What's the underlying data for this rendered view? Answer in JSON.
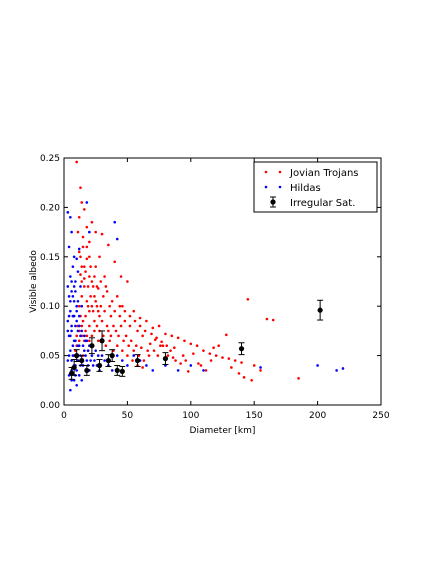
{
  "chart_data": {
    "type": "scatter",
    "title": "",
    "xlabel": "Diameter [km]",
    "ylabel": "Visible albedo",
    "xlim": [
      0,
      250
    ],
    "ylim": [
      0.0,
      0.25
    ],
    "x_ticks": [
      0,
      50,
      100,
      150,
      200,
      250
    ],
    "y_ticks": [
      0.0,
      0.05,
      0.1,
      0.15,
      0.2,
      0.25
    ],
    "x_tick_labels": [
      "0",
      "50",
      "100",
      "150",
      "200",
      "250"
    ],
    "y_tick_labels": [
      "0.00",
      "0.05",
      "0.10",
      "0.15",
      "0.20",
      "0.25"
    ],
    "grid": false,
    "legend_position": "top-right",
    "series": [
      {
        "name": "Jovian Trojans",
        "color": "#ff0000",
        "marker": "dot",
        "points": [
          [
            10,
            0.246
          ],
          [
            13,
            0.22
          ],
          [
            14,
            0.205
          ],
          [
            12,
            0.19
          ],
          [
            16,
            0.198
          ],
          [
            18,
            0.18
          ],
          [
            11,
            0.175
          ],
          [
            22,
            0.185
          ],
          [
            25,
            0.175
          ],
          [
            30,
            0.173
          ],
          [
            20,
            0.165
          ],
          [
            15,
            0.16
          ],
          [
            35,
            0.162
          ],
          [
            28,
            0.15
          ],
          [
            12,
            0.155
          ],
          [
            18,
            0.148
          ],
          [
            25,
            0.14
          ],
          [
            14,
            0.14
          ],
          [
            40,
            0.145
          ],
          [
            45,
            0.13
          ],
          [
            50,
            0.125
          ],
          [
            42,
            0.11
          ],
          [
            33,
            0.12
          ],
          [
            20,
            0.13
          ],
          [
            16,
            0.128
          ],
          [
            13,
            0.132
          ],
          [
            22,
            0.125
          ],
          [
            27,
            0.118
          ],
          [
            31,
            0.11
          ],
          [
            38,
            0.105
          ],
          [
            46,
            0.1
          ],
          [
            55,
            0.095
          ],
          [
            60,
            0.088
          ],
          [
            65,
            0.085
          ],
          [
            70,
            0.078
          ],
          [
            75,
            0.08
          ],
          [
            80,
            0.072
          ],
          [
            85,
            0.07
          ],
          [
            90,
            0.068
          ],
          [
            95,
            0.065
          ],
          [
            100,
            0.062
          ],
          [
            105,
            0.06
          ],
          [
            110,
            0.055
          ],
          [
            115,
            0.052
          ],
          [
            120,
            0.05
          ],
          [
            125,
            0.048
          ],
          [
            130,
            0.047
          ],
          [
            135,
            0.045
          ],
          [
            140,
            0.043
          ],
          [
            145,
            0.107
          ],
          [
            150,
            0.04
          ],
          [
            160,
            0.087
          ],
          [
            165,
            0.086
          ],
          [
            185,
            0.027
          ],
          [
            155,
            0.035
          ],
          [
            122,
            0.06
          ],
          [
            118,
            0.058
          ],
          [
            128,
            0.071
          ],
          [
            108,
            0.04
          ],
          [
            112,
            0.035
          ],
          [
            98,
            0.034
          ],
          [
            92,
            0.042
          ],
          [
            88,
            0.045
          ],
          [
            82,
            0.05
          ],
          [
            78,
            0.06
          ],
          [
            72,
            0.066
          ],
          [
            68,
            0.062
          ],
          [
            62,
            0.07
          ],
          [
            58,
            0.075
          ],
          [
            52,
            0.08
          ],
          [
            48,
            0.085
          ],
          [
            44,
            0.09
          ],
          [
            40,
            0.095
          ],
          [
            36,
            0.1
          ],
          [
            32,
            0.095
          ],
          [
            28,
            0.09
          ],
          [
            24,
            0.085
          ],
          [
            20,
            0.08
          ],
          [
            17,
            0.075
          ],
          [
            14,
            0.07
          ],
          [
            12,
            0.065
          ],
          [
            10,
            0.06
          ],
          [
            9,
            0.055
          ],
          [
            8,
            0.05
          ],
          [
            11,
            0.045
          ],
          [
            15,
            0.05
          ],
          [
            19,
            0.055
          ],
          [
            23,
            0.06
          ],
          [
            27,
            0.065
          ],
          [
            31,
            0.07
          ],
          [
            35,
            0.075
          ],
          [
            39,
            0.08
          ],
          [
            43,
            0.07
          ],
          [
            47,
            0.065
          ],
          [
            51,
            0.06
          ],
          [
            55,
            0.055
          ],
          [
            59,
            0.05
          ],
          [
            63,
            0.045
          ],
          [
            67,
            0.05
          ],
          [
            71,
            0.055
          ],
          [
            76,
            0.06
          ],
          [
            84,
            0.055
          ],
          [
            94,
            0.05
          ],
          [
            102,
            0.052
          ],
          [
            116,
            0.045
          ],
          [
            132,
            0.038
          ],
          [
            138,
            0.032
          ],
          [
            142,
            0.028
          ],
          [
            148,
            0.025
          ],
          [
            12,
            0.1
          ],
          [
            14,
            0.11
          ],
          [
            16,
            0.12
          ],
          [
            18,
            0.105
          ],
          [
            20,
            0.095
          ],
          [
            22,
            0.1
          ],
          [
            24,
            0.11
          ],
          [
            26,
            0.1
          ],
          [
            29,
            0.1
          ],
          [
            13,
            0.09
          ],
          [
            15,
            0.085
          ],
          [
            17,
            0.09
          ],
          [
            19,
            0.1
          ],
          [
            21,
            0.11
          ],
          [
            23,
            0.12
          ],
          [
            25,
            0.105
          ],
          [
            27,
            0.095
          ],
          [
            30,
            0.085
          ],
          [
            34,
            0.08
          ],
          [
            37,
            0.07
          ],
          [
            41,
            0.075
          ],
          [
            45,
            0.08
          ],
          [
            49,
            0.07
          ],
          [
            53,
            0.065
          ],
          [
            57,
            0.06
          ],
          [
            61,
            0.058
          ],
          [
            66,
            0.055
          ],
          [
            74,
            0.05
          ],
          [
            86,
            0.048
          ],
          [
            96,
            0.045
          ],
          [
            106,
            0.042
          ],
          [
            14,
            0.125
          ],
          [
            16,
            0.14
          ],
          [
            13,
            0.15
          ],
          [
            15,
            0.17
          ],
          [
            17,
            0.135
          ],
          [
            19,
            0.12
          ],
          [
            21,
            0.14
          ],
          [
            23,
            0.095
          ],
          [
            11,
            0.08
          ],
          [
            10,
            0.07
          ],
          [
            12,
            0.075
          ],
          [
            14,
            0.08
          ],
          [
            16,
            0.065
          ],
          [
            18,
            0.07
          ],
          [
            20,
            0.065
          ],
          [
            22,
            0.07
          ],
          [
            24,
            0.075
          ],
          [
            26,
            0.08
          ],
          [
            28,
            0.075
          ],
          [
            30,
            0.065
          ],
          [
            33,
            0.06
          ],
          [
            36,
            0.065
          ],
          [
            39,
            0.055
          ],
          [
            42,
            0.06
          ],
          [
            46,
            0.055
          ],
          [
            50,
            0.05
          ],
          [
            54,
            0.045
          ],
          [
            58,
            0.04
          ],
          [
            62,
            0.038
          ],
          [
            18,
            0.16
          ],
          [
            20,
            0.15
          ],
          [
            24,
            0.13
          ],
          [
            26,
            0.12
          ],
          [
            29,
            0.125
          ],
          [
            32,
            0.13
          ],
          [
            34,
            0.115
          ],
          [
            37,
            0.09
          ],
          [
            44,
            0.1
          ],
          [
            48,
            0.095
          ],
          [
            52,
            0.09
          ],
          [
            56,
            0.085
          ],
          [
            60,
            0.08
          ],
          [
            64,
            0.075
          ],
          [
            69,
            0.072
          ],
          [
            73,
            0.068
          ],
          [
            77,
            0.064
          ],
          [
            81,
            0.06
          ],
          [
            87,
            0.058
          ]
        ]
      },
      {
        "name": "Hildas",
        "color": "#0000ff",
        "marker": "dot",
        "points": [
          [
            3,
            0.195
          ],
          [
            5,
            0.19
          ],
          [
            6,
            0.175
          ],
          [
            4,
            0.16
          ],
          [
            8,
            0.15
          ],
          [
            7,
            0.14
          ],
          [
            5,
            0.13
          ],
          [
            3,
            0.12
          ],
          [
            9,
            0.125
          ],
          [
            6,
            0.115
          ],
          [
            4,
            0.11
          ],
          [
            8,
            0.105
          ],
          [
            10,
            0.1
          ],
          [
            5,
            0.095
          ],
          [
            7,
            0.09
          ],
          [
            3,
            0.085
          ],
          [
            9,
            0.08
          ],
          [
            6,
            0.075
          ],
          [
            4,
            0.07
          ],
          [
            8,
            0.065
          ],
          [
            11,
            0.06
          ],
          [
            5,
            0.055
          ],
          [
            7,
            0.05
          ],
          [
            3,
            0.045
          ],
          [
            9,
            0.04
          ],
          [
            6,
            0.035
          ],
          [
            4,
            0.03
          ],
          [
            8,
            0.025
          ],
          [
            10,
            0.02
          ],
          [
            5,
            0.015
          ],
          [
            12,
            0.06
          ],
          [
            13,
            0.05
          ],
          [
            14,
            0.045
          ],
          [
            15,
            0.04
          ],
          [
            16,
            0.055
          ],
          [
            17,
            0.05
          ],
          [
            18,
            0.045
          ],
          [
            19,
            0.04
          ],
          [
            20,
            0.035
          ],
          [
            22,
            0.05
          ],
          [
            24,
            0.045
          ],
          [
            26,
            0.04
          ],
          [
            28,
            0.035
          ],
          [
            30,
            0.05
          ],
          [
            32,
            0.045
          ],
          [
            35,
            0.04
          ],
          [
            38,
            0.035
          ],
          [
            42,
            0.05
          ],
          [
            46,
            0.045
          ],
          [
            50,
            0.04
          ],
          [
            55,
            0.05
          ],
          [
            60,
            0.045
          ],
          [
            65,
            0.04
          ],
          [
            70,
            0.035
          ],
          [
            80,
            0.04
          ],
          [
            90,
            0.035
          ],
          [
            100,
            0.04
          ],
          [
            110,
            0.035
          ],
          [
            155,
            0.038
          ],
          [
            200,
            0.04
          ],
          [
            215,
            0.035
          ],
          [
            220,
            0.037
          ],
          [
            40,
            0.185
          ],
          [
            42,
            0.168
          ],
          [
            20,
            0.175
          ],
          [
            18,
            0.205
          ],
          [
            12,
            0.158
          ],
          [
            10,
            0.148
          ],
          [
            11,
            0.135
          ],
          [
            13,
            0.12
          ],
          [
            14,
            0.1
          ],
          [
            12,
            0.09
          ],
          [
            10,
            0.085
          ],
          [
            11,
            0.075
          ],
          [
            13,
            0.07
          ],
          [
            9,
            0.065
          ],
          [
            7,
            0.06
          ],
          [
            5,
            0.07
          ],
          [
            6,
            0.08
          ],
          [
            8,
            0.09
          ],
          [
            10,
            0.095
          ],
          [
            12,
            0.08
          ],
          [
            14,
            0.075
          ],
          [
            16,
            0.07
          ],
          [
            18,
            0.065
          ],
          [
            20,
            0.06
          ],
          [
            7,
            0.11
          ],
          [
            5,
            0.105
          ],
          [
            9,
            0.115
          ],
          [
            11,
            0.105
          ],
          [
            6,
            0.125
          ],
          [
            8,
            0.12
          ],
          [
            4,
            0.09
          ],
          [
            3,
            0.075
          ],
          [
            4,
            0.05
          ],
          [
            6,
            0.045
          ],
          [
            8,
            0.04
          ],
          [
            10,
            0.035
          ],
          [
            12,
            0.03
          ],
          [
            14,
            0.025
          ],
          [
            6,
            0.025
          ],
          [
            9,
            0.03
          ],
          [
            11,
            0.045
          ],
          [
            13,
            0.04
          ],
          [
            15,
            0.06
          ],
          [
            17,
            0.065
          ],
          [
            19,
            0.055
          ],
          [
            21,
            0.045
          ],
          [
            23,
            0.04
          ],
          [
            25,
            0.055
          ],
          [
            27,
            0.05
          ]
        ]
      },
      {
        "name": "Irregular Sat.",
        "color": "#000000",
        "marker": "errorbar",
        "points": [
          [
            6,
            0.032,
            0.006
          ],
          [
            8,
            0.038,
            0.008
          ],
          [
            10,
            0.05,
            0.006
          ],
          [
            14,
            0.045,
            0.005
          ],
          [
            18,
            0.035,
            0.005
          ],
          [
            22,
            0.06,
            0.008
          ],
          [
            28,
            0.04,
            0.006
          ],
          [
            30,
            0.065,
            0.01
          ],
          [
            35,
            0.045,
            0.006
          ],
          [
            38,
            0.05,
            0.006
          ],
          [
            42,
            0.035,
            0.005
          ],
          [
            46,
            0.034,
            0.005
          ],
          [
            58,
            0.045,
            0.006
          ],
          [
            80,
            0.047,
            0.006
          ],
          [
            140,
            0.057,
            0.006
          ],
          [
            202,
            0.096,
            0.01
          ]
        ]
      }
    ]
  }
}
